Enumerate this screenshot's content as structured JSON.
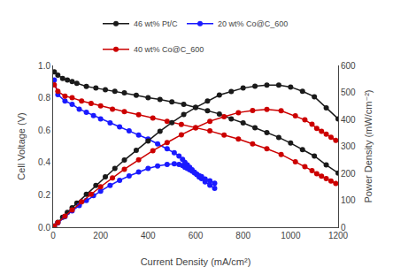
{
  "chart_data": {
    "type": "line",
    "xlabel": "Current Density (mA/cm²)",
    "ylabel": "Cell Voltage (V)",
    "y2label": "Power Density (mW/cm⁻²)",
    "xlim": [
      0,
      1200
    ],
    "xticks": [
      0,
      200,
      400,
      600,
      800,
      1000,
      1200
    ],
    "ylim": [
      0,
      1.0
    ],
    "yticks": [
      {
        "value": 0,
        "label": "0.0"
      },
      0.2,
      0.4,
      0.6,
      0.8,
      {
        "value": 1.0,
        "label": "1.0"
      }
    ],
    "y2lim": [
      0,
      600
    ],
    "y2ticks": [
      0,
      100,
      200,
      300,
      400,
      500,
      600
    ],
    "grid": false,
    "legend": "top",
    "marker": "circle",
    "line_style": "solid",
    "series": [
      {
        "name": "46 wt% Pt/C",
        "color": "#1a1a1a",
        "axis": "y",
        "x": [
          5,
          20,
          40,
          60,
          80,
          100,
          140,
          180,
          220,
          260,
          300,
          350,
          400,
          450,
          500,
          550,
          600,
          650,
          700,
          750,
          800,
          850,
          900,
          950,
          1000,
          1050,
          1100,
          1150,
          1200
        ],
        "values": [
          0.96,
          0.94,
          0.92,
          0.91,
          0.9,
          0.89,
          0.87,
          0.86,
          0.85,
          0.84,
          0.83,
          0.815,
          0.8,
          0.79,
          0.775,
          0.76,
          0.74,
          0.72,
          0.7,
          0.67,
          0.645,
          0.615,
          0.585,
          0.555,
          0.52,
          0.48,
          0.44,
          0.385,
          0.335
        ]
      },
      {
        "name": "46 wt% Pt/C",
        "color": "#1a1a1a",
        "axis": "y2",
        "x": [
          5,
          20,
          40,
          60,
          80,
          100,
          140,
          180,
          220,
          260,
          300,
          350,
          400,
          450,
          500,
          550,
          600,
          650,
          700,
          750,
          800,
          850,
          900,
          950,
          1000,
          1050,
          1100,
          1150,
          1200
        ],
        "values": [
          4,
          18,
          37,
          55,
          72,
          89,
          122,
          155,
          187,
          218,
          249,
          285,
          320,
          356,
          388,
          418,
          444,
          468,
          490,
          503,
          516,
          523,
          527,
          527,
          520,
          504,
          484,
          443,
          402
        ]
      },
      {
        "name": "20 wt% Co@C_600",
        "color": "#1a1aff",
        "axis": "y",
        "x": [
          5,
          20,
          50,
          80,
          110,
          140,
          170,
          200,
          240,
          280,
          320,
          360,
          400,
          440,
          480,
          510,
          530,
          545,
          555,
          565,
          575,
          585,
          595,
          605,
          615,
          625,
          640,
          660,
          680
        ],
        "values": [
          0.91,
          0.82,
          0.78,
          0.76,
          0.73,
          0.71,
          0.69,
          0.67,
          0.645,
          0.62,
          0.595,
          0.57,
          0.545,
          0.515,
          0.485,
          0.46,
          0.44,
          0.42,
          0.4,
          0.385,
          0.37,
          0.355,
          0.34,
          0.325,
          0.31,
          0.3,
          0.28,
          0.26,
          0.24
        ]
      },
      {
        "name": "20 wt% Co@C_600",
        "color": "#1a1aff",
        "axis": "y2",
        "x": [
          5,
          20,
          50,
          80,
          110,
          140,
          170,
          200,
          240,
          280,
          320,
          360,
          400,
          440,
          480,
          510,
          530,
          545,
          555,
          565,
          575,
          585,
          595,
          605,
          615,
          625,
          640,
          660,
          680
        ],
        "values": [
          4,
          16,
          39,
          61,
          80,
          99,
          117,
          134,
          155,
          174,
          190,
          205,
          218,
          227,
          233,
          235,
          233,
          229,
          222,
          218,
          213,
          208,
          202,
          197,
          191,
          188,
          179,
          172,
          163
        ]
      },
      {
        "name": "40 wt% Co@C_600",
        "color": "#cc0000",
        "axis": "y",
        "x": [
          5,
          20,
          50,
          80,
          120,
          160,
          200,
          250,
          300,
          360,
          420,
          480,
          540,
          600,
          660,
          720,
          780,
          840,
          900,
          960,
          1020,
          1060,
          1090,
          1110,
          1130,
          1150,
          1170,
          1190
        ],
        "values": [
          0.88,
          0.84,
          0.81,
          0.8,
          0.78,
          0.765,
          0.75,
          0.73,
          0.715,
          0.695,
          0.675,
          0.655,
          0.635,
          0.615,
          0.595,
          0.57,
          0.545,
          0.515,
          0.485,
          0.45,
          0.405,
          0.375,
          0.35,
          0.33,
          0.315,
          0.3,
          0.285,
          0.27
        ]
      },
      {
        "name": "40 wt% Co@C_600",
        "color": "#cc0000",
        "axis": "y2",
        "x": [
          5,
          20,
          50,
          80,
          120,
          160,
          200,
          250,
          300,
          360,
          420,
          480,
          540,
          600,
          660,
          720,
          780,
          840,
          900,
          960,
          1020,
          1060,
          1090,
          1110,
          1130,
          1150,
          1170,
          1190
        ],
        "values": [
          4,
          17,
          41,
          64,
          94,
          122,
          150,
          183,
          215,
          250,
          284,
          314,
          343,
          369,
          393,
          410,
          425,
          433,
          437,
          432,
          413,
          398,
          382,
          366,
          356,
          345,
          334,
          322
        ]
      }
    ]
  }
}
